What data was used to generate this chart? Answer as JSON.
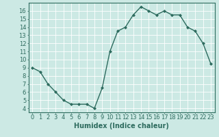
{
  "x": [
    0,
    1,
    2,
    3,
    4,
    5,
    6,
    7,
    8,
    9,
    10,
    11,
    12,
    13,
    14,
    15,
    16,
    17,
    18,
    19,
    20,
    21,
    22,
    23
  ],
  "y": [
    9,
    8.5,
    7,
    6,
    5,
    4.5,
    4.5,
    4.5,
    4,
    6.5,
    11,
    13.5,
    14,
    15.5,
    16.5,
    16,
    15.5,
    16,
    15.5,
    15.5,
    14,
    13.5,
    12,
    9.5
  ],
  "line_color": "#2d6b5e",
  "marker": "D",
  "markersize": 2.0,
  "linewidth": 1.0,
  "xlabel": "Humidex (Indice chaleur)",
  "xlim": [
    -0.5,
    23.5
  ],
  "ylim": [
    3.5,
    17
  ],
  "yticks": [
    4,
    5,
    6,
    7,
    8,
    9,
    10,
    11,
    12,
    13,
    14,
    15,
    16
  ],
  "xticks": [
    0,
    1,
    2,
    3,
    4,
    5,
    6,
    7,
    8,
    9,
    10,
    11,
    12,
    13,
    14,
    15,
    16,
    17,
    18,
    19,
    20,
    21,
    22,
    23
  ],
  "xtick_labels": [
    "0",
    "1",
    "2",
    "3",
    "4",
    "5",
    "6",
    "7",
    "8",
    "9",
    "10",
    "11",
    "12",
    "13",
    "14",
    "15",
    "16",
    "17",
    "18",
    "19",
    "20",
    "21",
    "22",
    "23"
  ],
  "bg_color": "#cce9e4",
  "grid_color": "#ffffff",
  "label_color": "#2d6b5e",
  "tick_color": "#2d6b5e",
  "spine_color": "#2d6b5e",
  "xlabel_fontsize": 7.0,
  "tick_fontsize": 6.0
}
